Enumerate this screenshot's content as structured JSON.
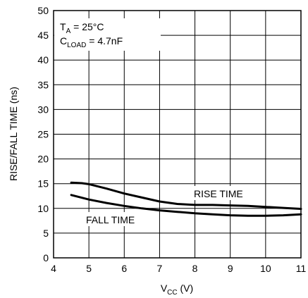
{
  "chart_data": {
    "type": "line",
    "xlabel": "V",
    "xlabel_sub": "CC",
    "xlabel_unit": " (V)",
    "ylabel": "RISE/FALL TIME (ns)",
    "xlim": [
      4,
      11
    ],
    "ylim": [
      0,
      50
    ],
    "xticks": [
      "4",
      "5",
      "6",
      "7",
      "8",
      "9",
      "10",
      "11"
    ],
    "yticks": [
      "0",
      "5",
      "10",
      "15",
      "20",
      "25",
      "30",
      "35",
      "40",
      "45",
      "50"
    ],
    "grid": true,
    "annotations": {
      "ta_main": "T",
      "ta_sub": "A",
      "ta_rest": " = 25°C",
      "cl_main": "C",
      "cl_sub": "LOAD",
      "cl_rest": " = 4.7nF"
    },
    "series": [
      {
        "name": "RISE TIME",
        "x": [
          4.5,
          4.8,
          5.0,
          5.5,
          6.0,
          6.5,
          7.0,
          7.5,
          8.0,
          8.5,
          9.0,
          9.5,
          10.0,
          10.5,
          11.0
        ],
        "y": [
          15.2,
          15.1,
          14.9,
          14.0,
          13.0,
          12.2,
          11.4,
          10.9,
          10.7,
          10.7,
          10.6,
          10.5,
          10.3,
          10.1,
          9.9
        ]
      },
      {
        "name": "FALL TIME",
        "x": [
          4.5,
          5.0,
          5.5,
          6.0,
          6.5,
          7.0,
          7.5,
          8.0,
          8.5,
          9.0,
          9.5,
          10.0,
          10.5,
          11.0
        ],
        "y": [
          12.7,
          11.8,
          11.1,
          10.5,
          10.0,
          9.6,
          9.3,
          9.0,
          8.8,
          8.6,
          8.5,
          8.5,
          8.6,
          8.8
        ]
      }
    ],
    "series_labels": {
      "rise": "RISE TIME",
      "fall": "FALL TIME"
    }
  }
}
